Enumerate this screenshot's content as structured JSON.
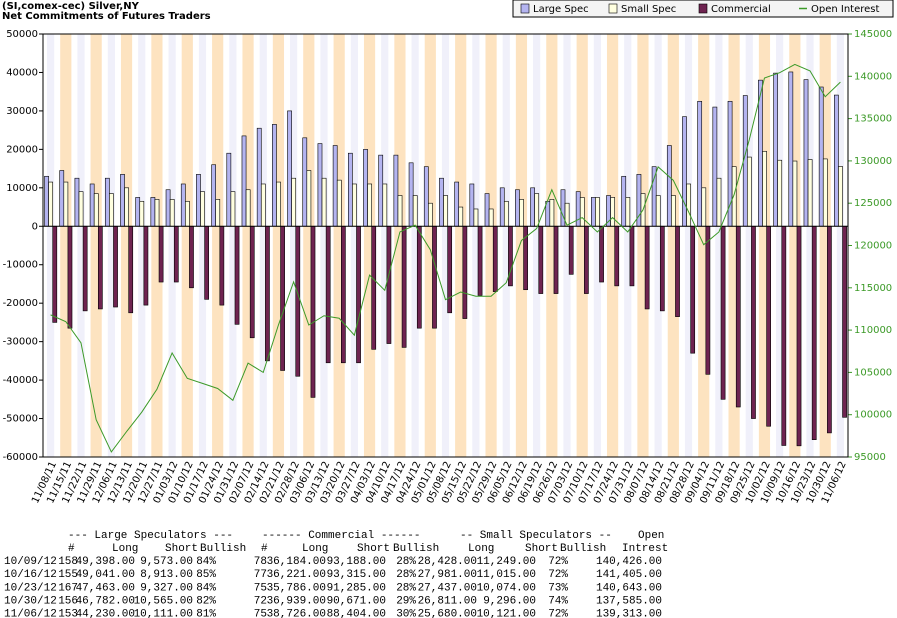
{
  "chart_data": {
    "type": "bar",
    "title": "(SI,comex-cec) Silver,NY",
    "subtitle": "Net Commitments of Futures Traders",
    "categories": [
      "11/08/11",
      "11/15/11",
      "11/22/11",
      "11/29/11",
      "12/06/11",
      "12/13/11",
      "12/20/11",
      "12/27/11",
      "01/03/12",
      "01/10/12",
      "01/17/12",
      "01/24/12",
      "01/31/12",
      "02/07/12",
      "02/14/12",
      "02/21/12",
      "02/28/12",
      "03/06/12",
      "03/13/12",
      "03/20/12",
      "03/27/12",
      "04/03/12",
      "04/10/12",
      "04/17/12",
      "04/24/12",
      "05/01/12",
      "05/08/12",
      "05/15/12",
      "05/22/12",
      "05/29/12",
      "06/05/12",
      "06/12/12",
      "06/19/12",
      "06/26/12",
      "07/03/12",
      "07/10/12",
      "07/17/12",
      "07/24/12",
      "07/31/12",
      "08/07/12",
      "08/14/12",
      "08/21/12",
      "08/28/12",
      "09/04/12",
      "09/11/12",
      "09/18/12",
      "09/25/12",
      "10/02/12",
      "10/09/12",
      "10/16/12",
      "10/23/12",
      "10/30/12",
      "11/06/12"
    ],
    "series": [
      {
        "name": "Large Spec",
        "color": "#b4b4f0",
        "values": [
          13000,
          14500,
          12500,
          11000,
          12500,
          13500,
          7500,
          7500,
          9500,
          11000,
          13500,
          16000,
          19000,
          23500,
          25500,
          26500,
          30000,
          23000,
          21500,
          21000,
          19000,
          20000,
          18500,
          18500,
          16500,
          15500,
          12500,
          11500,
          11000,
          8500,
          10000,
          9500,
          10000,
          6500,
          9500,
          9000,
          7500,
          8000,
          13000,
          13500,
          15500,
          21000,
          28500,
          32500,
          31000,
          32500,
          34000,
          38000,
          39825,
          40128,
          38136,
          36217,
          34119
        ]
      },
      {
        "name": "Small Spec",
        "color": "#ffffe0",
        "values": [
          11500,
          11500,
          9000,
          8500,
          8500,
          10000,
          6500,
          7000,
          7000,
          6500,
          9000,
          7000,
          9000,
          9500,
          11000,
          11500,
          12500,
          14500,
          12500,
          12000,
          11000,
          11000,
          11000,
          8000,
          8000,
          6000,
          8000,
          5000,
          4500,
          4500,
          6500,
          7000,
          8500,
          7000,
          6000,
          7500,
          7500,
          7500,
          7500,
          8500,
          8000,
          8000,
          11000,
          10000,
          12500,
          15500,
          18000,
          19500,
          17179,
          16966,
          17363,
          17515,
          15559
        ]
      },
      {
        "name": "Commercial",
        "color": "#6e2350",
        "values": [
          -25000,
          -26500,
          -22000,
          -21500,
          -21000,
          -22500,
          -20500,
          -14500,
          -14500,
          -16000,
          -19000,
          -20500,
          -25500,
          -29000,
          -35000,
          -37500,
          -39000,
          -44500,
          -35500,
          -35500,
          -35500,
          -32000,
          -30500,
          -31500,
          -26500,
          -26500,
          -22500,
          -24000,
          -18000,
          -17000,
          -15500,
          -16500,
          -17500,
          -17500,
          -12500,
          -17500,
          -14500,
          -15500,
          -15500,
          -21500,
          -22000,
          -23500,
          -33000,
          -38500,
          -45000,
          -47000,
          -50000,
          -52000,
          -57004,
          -57094,
          -55499,
          -53732,
          -49678
        ]
      },
      {
        "name": "Open Interest",
        "color": "#3c9a28",
        "type": "line",
        "axis": "y2",
        "values": [
          111800,
          111000,
          108500,
          99400,
          95600,
          98000,
          100300,
          103000,
          107300,
          104300,
          103700,
          103100,
          101700,
          106100,
          105000,
          110600,
          115700,
          110600,
          111700,
          111400,
          109400,
          116500,
          114700,
          121600,
          122400,
          119500,
          113600,
          114500,
          114000,
          114000,
          115600,
          120600,
          122000,
          126600,
          122400,
          123300,
          121600,
          123300,
          121600,
          124200,
          129300,
          127700,
          124000,
          120100,
          121600,
          126000,
          132500,
          139800,
          140426,
          141405,
          140643,
          137585,
          139313
        ]
      }
    ],
    "ylim": [
      -60000,
      50000
    ],
    "yticks": [
      -60000,
      -50000,
      -40000,
      -30000,
      -20000,
      -10000,
      0,
      10000,
      20000,
      30000,
      40000,
      50000
    ],
    "y2lim": [
      95000,
      145000
    ],
    "y2ticks": [
      95000,
      100000,
      105000,
      110000,
      115000,
      120000,
      125000,
      130000,
      135000,
      140000,
      145000
    ],
    "legend": "top-right"
  },
  "table": {
    "group_header": [
      "--- Large Speculators ---",
      "------ Commercial ------",
      "-- Small Speculators --",
      "Open"
    ],
    "columns": [
      "#",
      "Long",
      "Short",
      "Bullish",
      "#",
      "Long",
      "Short",
      "Bullish",
      "Long",
      "Short",
      "Bullish",
      "Intrest"
    ],
    "rows": [
      [
        "10/09/12",
        "158",
        "49,398.00",
        "9,573.00",
        "84%",
        "78",
        "36,184.00",
        "93,188.00",
        "28%",
        "28,428.00",
        "11,249.00",
        "72%",
        "140,426.00"
      ],
      [
        "10/16/12",
        "155",
        "49,041.00",
        "8,913.00",
        "85%",
        "77",
        "36,221.00",
        "93,315.00",
        "28%",
        "27,981.00",
        "11,015.00",
        "72%",
        "141,405.00"
      ],
      [
        "10/23/12",
        "167",
        "47,463.00",
        "9,327.00",
        "84%",
        "75",
        "35,786.00",
        "91,285.00",
        "28%",
        "27,437.00",
        "10,074.00",
        "73%",
        "140,643.00"
      ],
      [
        "10/30/12",
        "156",
        "46,782.00",
        "10,565.00",
        "82%",
        "72",
        "36,939.00",
        "90,671.00",
        "29%",
        "26,811.00",
        "9,296.00",
        "74%",
        "137,585.00"
      ],
      [
        "11/06/12",
        "153",
        "44,230.00",
        "10,111.00",
        "81%",
        "75",
        "38,726.00",
        "88,404.00",
        "30%",
        "25,680.00",
        "10,121.00",
        "72%",
        "139,313.00"
      ]
    ]
  }
}
